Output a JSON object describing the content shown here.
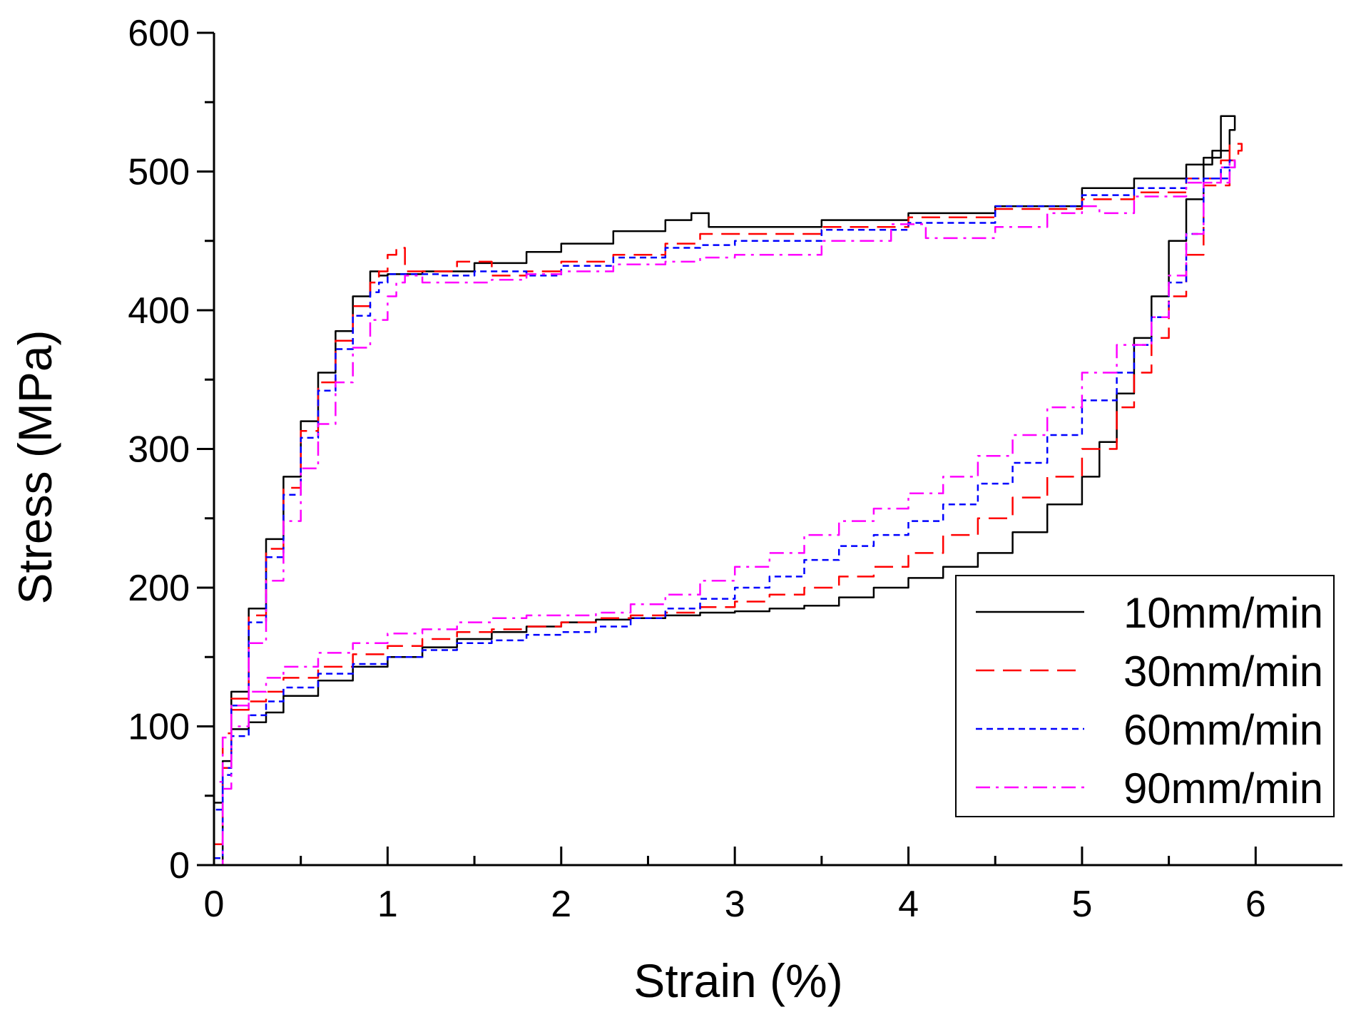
{
  "chart_data": {
    "type": "line",
    "title": "",
    "xlabel": "Strain (%)",
    "ylabel": "Stress (MPa)",
    "xlim": [
      0,
      6.5
    ],
    "ylim": [
      0,
      600
    ],
    "xticks": [
      0,
      1,
      2,
      3,
      4,
      5,
      6
    ],
    "yticks": [
      0,
      100,
      200,
      300,
      400,
      500,
      600
    ],
    "xtick_labels": [
      "0",
      "1",
      "2",
      "3",
      "4",
      "5",
      "6"
    ],
    "ytick_labels": [
      "0",
      "100",
      "200",
      "300",
      "400",
      "500",
      "600"
    ],
    "grid": false,
    "legend_position": "bottom-right",
    "series": [
      {
        "name": "10mm/min",
        "color": "#000000",
        "dash": "solid",
        "x": [
          0,
          0.05,
          0.1,
          0.2,
          0.3,
          0.4,
          0.5,
          0.6,
          0.7,
          0.8,
          0.9,
          0.95,
          1.0,
          1.2,
          1.5,
          1.8,
          2.0,
          2.3,
          2.6,
          2.75,
          2.85,
          3.0,
          3.5,
          4.0,
          4.5,
          5.0,
          5.3,
          5.6,
          5.75,
          5.85,
          5.88,
          5.8,
          5.7,
          5.6,
          5.5,
          5.4,
          5.3,
          5.2,
          5.1,
          5.0,
          4.8,
          4.6,
          4.4,
          4.2,
          4.0,
          3.8,
          3.6,
          3.4,
          3.2,
          3.0,
          2.8,
          2.6,
          2.4,
          2.2,
          2.0,
          1.8,
          1.6,
          1.4,
          1.2,
          1.0,
          0.8,
          0.6,
          0.4,
          0.3,
          0.2,
          0.1,
          0.05,
          0
        ],
        "y": [
          0,
          75,
          125,
          185,
          235,
          280,
          320,
          355,
          385,
          410,
          428,
          425,
          426,
          428,
          434,
          442,
          448,
          457,
          465,
          470,
          460,
          460,
          465,
          470,
          475,
          488,
          495,
          505,
          515,
          530,
          540,
          510,
          480,
          450,
          410,
          380,
          340,
          305,
          280,
          260,
          240,
          225,
          215,
          207,
          200,
          193,
          187,
          185,
          183,
          182,
          180,
          178,
          177,
          175,
          172,
          168,
          163,
          157,
          150,
          143,
          133,
          122,
          110,
          103,
          98,
          75,
          45,
          0
        ]
      },
      {
        "name": "30mm/min",
        "color": "#ff0000",
        "dash": "long-dash",
        "x": [
          0,
          0.05,
          0.1,
          0.2,
          0.3,
          0.4,
          0.5,
          0.6,
          0.7,
          0.8,
          0.9,
          0.95,
          1.0,
          1.05,
          1.1,
          1.2,
          1.4,
          1.6,
          1.8,
          2.0,
          2.3,
          2.6,
          2.8,
          3.0,
          3.5,
          4.0,
          4.5,
          5.0,
          5.3,
          5.6,
          5.8,
          5.9,
          5.92,
          5.85,
          5.7,
          5.6,
          5.5,
          5.4,
          5.3,
          5.2,
          5.0,
          4.8,
          4.6,
          4.4,
          4.2,
          4.0,
          3.8,
          3.6,
          3.4,
          3.2,
          3.0,
          2.8,
          2.6,
          2.4,
          2.2,
          2.0,
          1.8,
          1.6,
          1.4,
          1.2,
          1.0,
          0.8,
          0.6,
          0.4,
          0.3,
          0.2,
          0.1,
          0.05,
          0
        ],
        "y": [
          15,
          70,
          120,
          180,
          228,
          272,
          313,
          348,
          378,
          403,
          420,
          428,
          440,
          445,
          428,
          428,
          435,
          425,
          428,
          435,
          440,
          448,
          455,
          455,
          460,
          467,
          473,
          480,
          485,
          495,
          508,
          515,
          520,
          490,
          440,
          410,
          380,
          355,
          330,
          300,
          280,
          265,
          250,
          238,
          225,
          215,
          208,
          200,
          195,
          190,
          186,
          182,
          180,
          178,
          175,
          172,
          170,
          168,
          163,
          158,
          152,
          143,
          135,
          125,
          118,
          112,
          95,
          60,
          10
        ]
      },
      {
        "name": "60mm/min",
        "color": "#0000ff",
        "dash": "short-dash",
        "x": [
          0,
          0.05,
          0.1,
          0.2,
          0.3,
          0.4,
          0.5,
          0.6,
          0.7,
          0.8,
          0.9,
          0.95,
          1.0,
          1.1,
          1.3,
          1.5,
          1.8,
          2.0,
          2.3,
          2.6,
          2.8,
          3.0,
          3.5,
          4.0,
          4.5,
          5.0,
          5.3,
          5.6,
          5.8,
          5.88,
          5.85,
          5.7,
          5.6,
          5.5,
          5.4,
          5.3,
          5.2,
          5.0,
          4.8,
          4.6,
          4.4,
          4.2,
          4.0,
          3.8,
          3.6,
          3.4,
          3.2,
          3.0,
          2.8,
          2.6,
          2.4,
          2.2,
          2.0,
          1.8,
          1.6,
          1.4,
          1.2,
          1.0,
          0.8,
          0.6,
          0.4,
          0.3,
          0.2,
          0.1,
          0.05,
          0
        ],
        "y": [
          5,
          65,
          115,
          175,
          222,
          267,
          308,
          342,
          372,
          396,
          413,
          420,
          426,
          426,
          425,
          428,
          425,
          432,
          438,
          445,
          447,
          450,
          458,
          463,
          475,
          483,
          488,
          495,
          503,
          508,
          495,
          455,
          420,
          395,
          375,
          355,
          335,
          310,
          290,
          275,
          260,
          248,
          238,
          230,
          220,
          208,
          200,
          192,
          185,
          178,
          172,
          168,
          166,
          162,
          160,
          155,
          150,
          145,
          138,
          128,
          118,
          108,
          93,
          70,
          40,
          0
        ]
      },
      {
        "name": "90mm/min",
        "color": "#ff00ff",
        "dash": "dash-dot",
        "x": [
          0,
          0.05,
          0.1,
          0.2,
          0.3,
          0.4,
          0.5,
          0.6,
          0.7,
          0.8,
          0.9,
          1.0,
          1.05,
          1.1,
          1.2,
          1.4,
          1.6,
          1.8,
          2.0,
          2.3,
          2.6,
          2.8,
          3.0,
          3.5,
          3.9,
          4.1,
          4.5,
          4.8,
          5.0,
          5.1,
          5.3,
          5.6,
          5.8,
          5.88,
          5.85,
          5.7,
          5.6,
          5.5,
          5.4,
          5.2,
          5.0,
          4.8,
          4.6,
          4.4,
          4.2,
          4.0,
          3.8,
          3.6,
          3.4,
          3.2,
          3.0,
          2.8,
          2.6,
          2.4,
          2.2,
          2.0,
          1.8,
          1.6,
          1.4,
          1.2,
          1.0,
          0.8,
          0.6,
          0.4,
          0.3,
          0.2,
          0.1,
          0.05,
          0
        ],
        "y": [
          0,
          55,
          100,
          160,
          205,
          248,
          286,
          318,
          348,
          373,
          393,
          410,
          420,
          425,
          420,
          420,
          422,
          426,
          428,
          433,
          435,
          438,
          440,
          450,
          462,
          452,
          460,
          470,
          475,
          470,
          482,
          492,
          503,
          508,
          492,
          455,
          425,
          395,
          375,
          355,
          330,
          310,
          295,
          280,
          268,
          257,
          248,
          238,
          225,
          215,
          205,
          195,
          188,
          182,
          180,
          180,
          178,
          175,
          170,
          167,
          160,
          153,
          143,
          135,
          125,
          115,
          92,
          60,
          0
        ]
      }
    ]
  }
}
